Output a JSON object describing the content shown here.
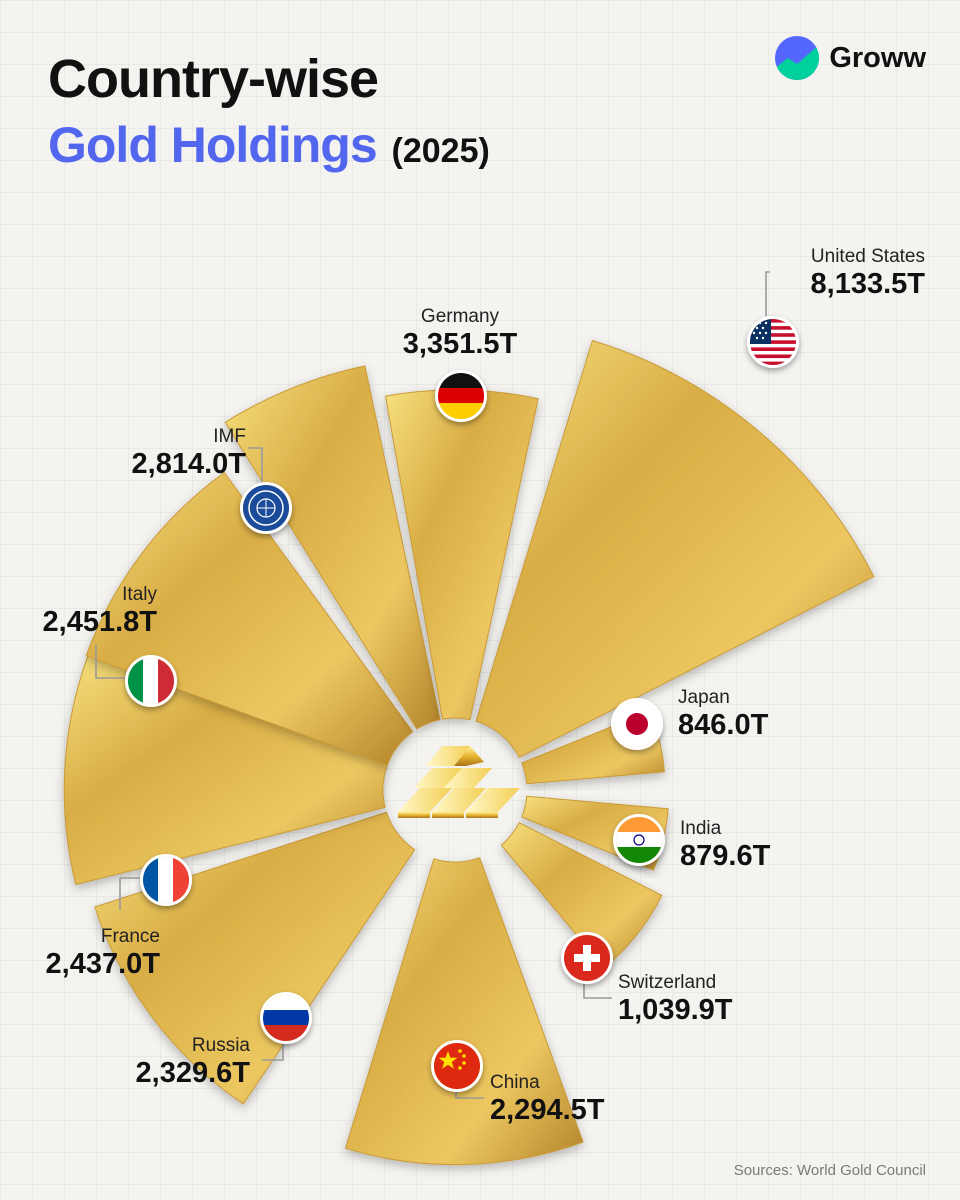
{
  "header": {
    "title_line1": "Country-wise",
    "title_accent": "Gold Holdings",
    "title_year": "(2025)"
  },
  "brand": {
    "name": "Groww",
    "icon": "groww-logo-icon"
  },
  "footer": {
    "source": "Sources: World Gold Council"
  },
  "colors": {
    "accent": "#5266ee",
    "gold_light": "#f6e07e",
    "gold_mid": "#d9ad45",
    "gold_dark": "#b3832a"
  },
  "center_icon": "gold-bars-icon",
  "chart_data": {
    "type": "pie",
    "title": "Country-wise Gold Holdings (2025)",
    "unit": "T",
    "series": [
      {
        "name": "United States",
        "value": 8133.5,
        "label": "8,133.5T",
        "flag": "us-flag-icon"
      },
      {
        "name": "Japan",
        "value": 846.0,
        "label": "846.0T",
        "flag": "japan-flag-icon"
      },
      {
        "name": "India",
        "value": 879.6,
        "label": "879.6T",
        "flag": "india-flag-icon"
      },
      {
        "name": "Switzerland",
        "value": 1039.9,
        "label": "1,039.9T",
        "flag": "switzerland-flag-icon"
      },
      {
        "name": "China",
        "value": 2294.5,
        "label": "2,294.5T",
        "flag": "china-flag-icon"
      },
      {
        "name": "Russia",
        "value": 2329.6,
        "label": "2,329.6T",
        "flag": "russia-flag-icon"
      },
      {
        "name": "France",
        "value": 2437.0,
        "label": "2,437.0T",
        "flag": "france-flag-icon"
      },
      {
        "name": "Italy",
        "value": 2451.8,
        "label": "2,451.8T",
        "flag": "italy-flag-icon"
      },
      {
        "name": "IMF",
        "value": 2814.0,
        "label": "2,814.0T",
        "flag": "imf-seal-icon"
      },
      {
        "name": "Germany",
        "value": 3351.5,
        "label": "3,351.5T",
        "flag": "germany-flag-icon"
      }
    ]
  }
}
